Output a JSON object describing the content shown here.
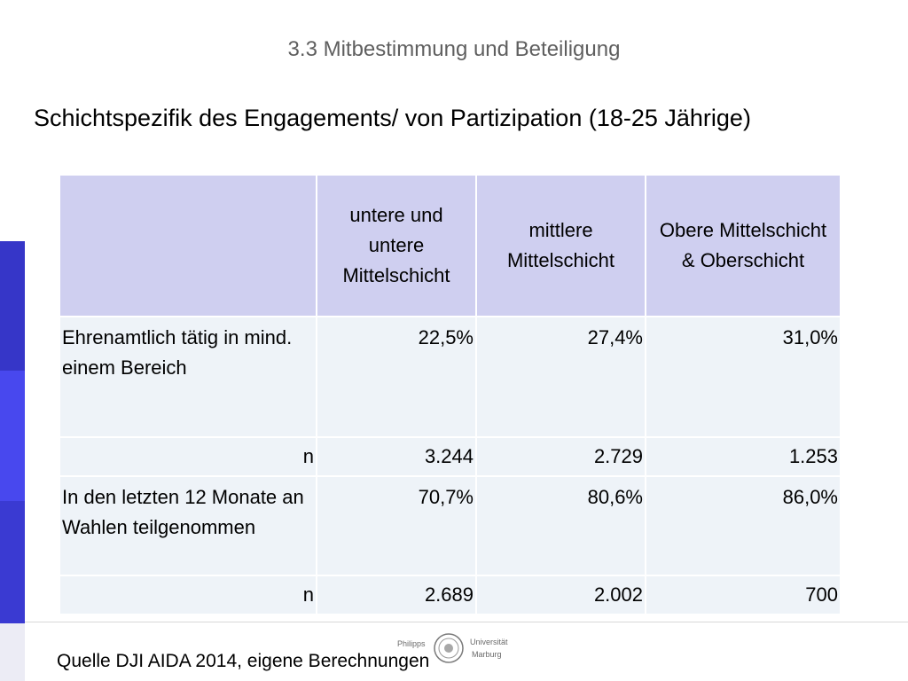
{
  "section_title": "3.3 Mitbestimmung und Beteiligung",
  "slide_title": "Schichtspezifik des Engagements/ von Partizipation (18-25 Jährige)",
  "table": {
    "headers": [
      "",
      "untere und untere Mittelschicht",
      "mittlere Mittelschicht",
      "Obere Mittelschicht & Oberschicht"
    ],
    "rows": [
      {
        "label": "Ehrenamtlich tätig in mind. einem Bereich",
        "values": [
          "22,5%",
          "27,4%",
          "31,0%"
        ]
      },
      {
        "label": "n",
        "values": [
          "3.244",
          "2.729",
          "1.253"
        ]
      },
      {
        "label": "In den letzten 12 Monate an Wahlen teilgenommen",
        "values": [
          "70,7%",
          "80,6%",
          "86,0%"
        ]
      },
      {
        "label": "n",
        "values": [
          "2.689",
          "2.002",
          "700"
        ]
      }
    ]
  },
  "logo": {
    "left_text": "Philipps",
    "right_top": "Universität",
    "right_bottom": "Marburg"
  },
  "source": "Quelle DJI AIDA 2014, eigene Berechnungen",
  "colors": {
    "header_bg": "#cfcff0",
    "cell_bg": "#eef3f8",
    "accent_bar": "#3a3ad2"
  }
}
